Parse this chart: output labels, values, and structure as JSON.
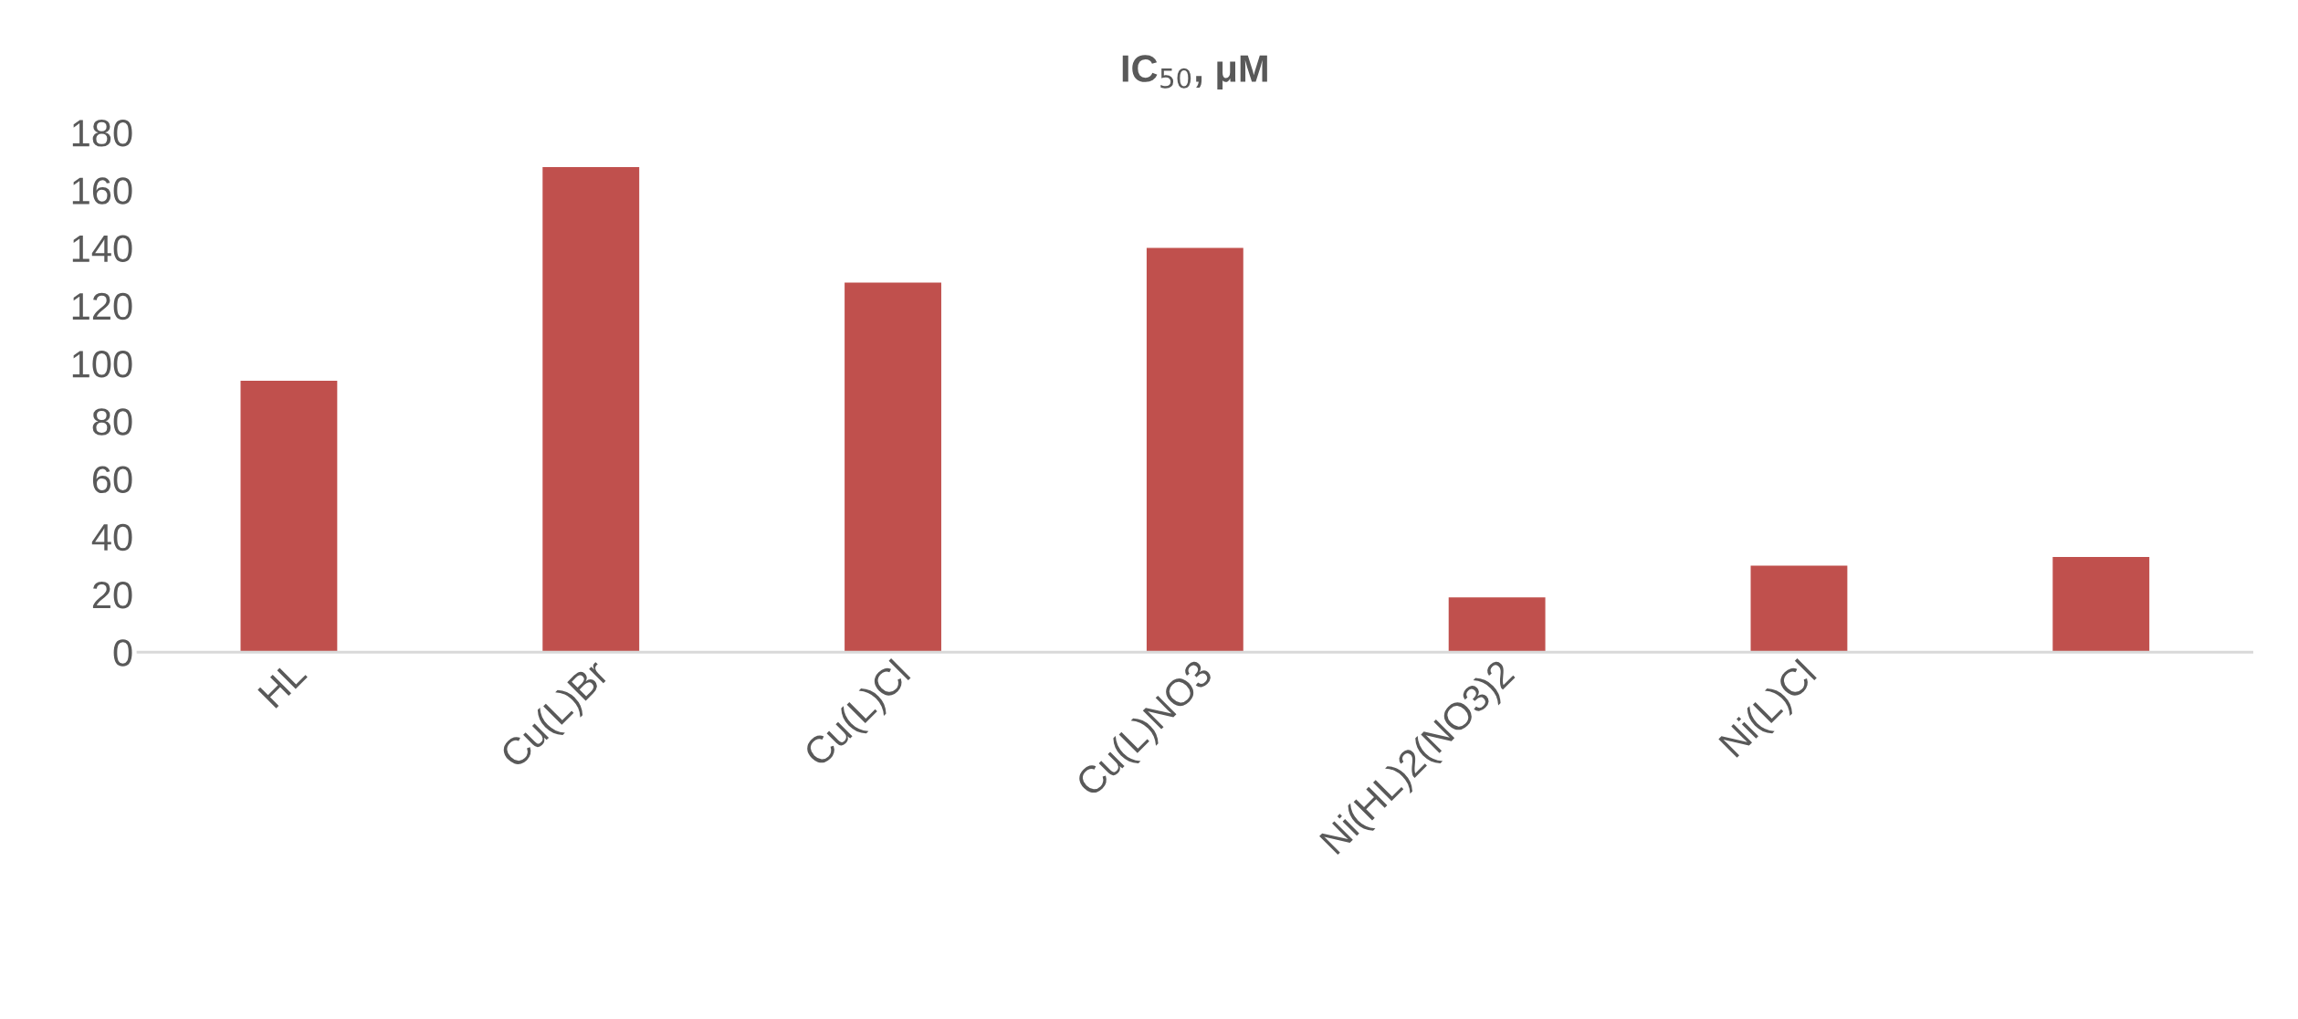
{
  "chart_data": {
    "type": "bar",
    "title": "IC$_{50}$, μM",
    "categories": [
      "HL",
      "Cu(L)Br",
      "Cu(L)Cl",
      "Cu(L)NO3",
      "Ni(HL)2(NO3)2",
      "Ni(L)Cl",
      null
    ],
    "values": [
      94,
      168,
      128,
      140,
      19,
      30,
      33
    ],
    "color": "#c0504d",
    "ylim": [
      0,
      180
    ],
    "yticks": [
      0,
      20,
      40,
      60,
      80,
      100,
      120,
      140,
      160,
      180
    ],
    "grid": false,
    "legend": false
  }
}
